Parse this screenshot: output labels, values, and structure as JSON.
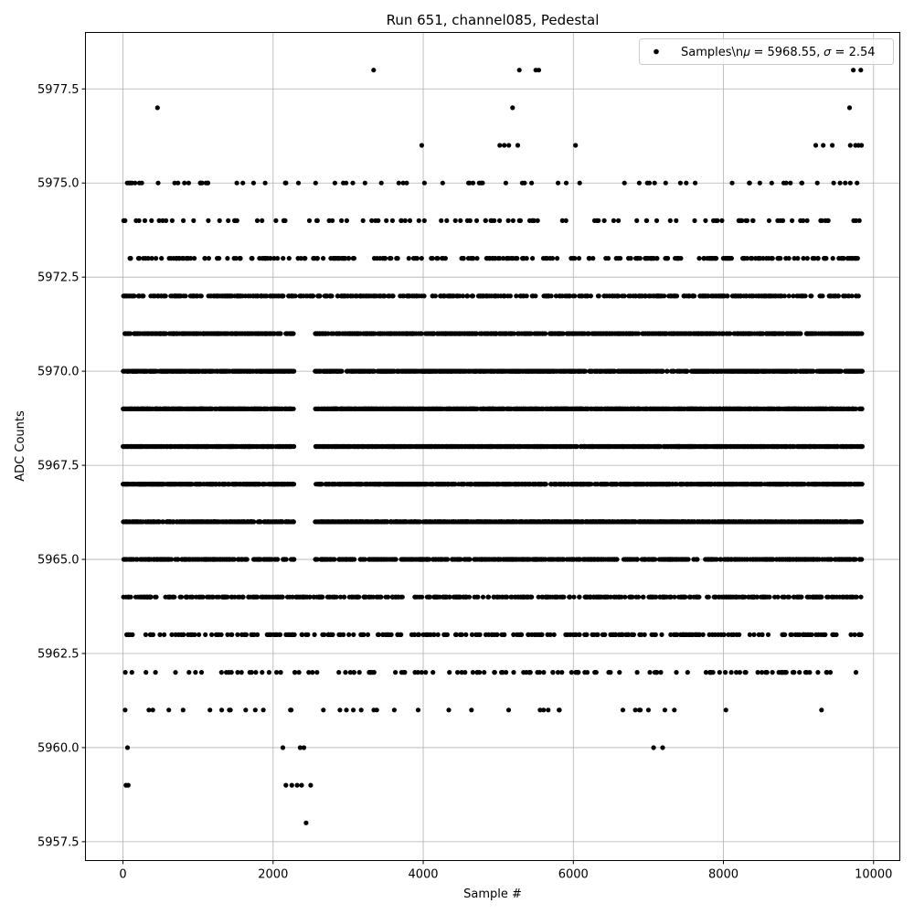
{
  "chart_data": {
    "type": "scatter",
    "title": "Run 651, channel085, Pedestal",
    "xlabel": "Sample #",
    "ylabel": "ADC Counts",
    "xlim": [
      -500,
      10350
    ],
    "ylim": [
      5957.0,
      5979.0
    ],
    "xticks": [
      0,
      2000,
      4000,
      6000,
      8000,
      10000
    ],
    "xtick_labels": [
      "0",
      "2000",
      "4000",
      "6000",
      "8000",
      "10000"
    ],
    "yticks": [
      5957.5,
      5960.0,
      5962.5,
      5965.0,
      5967.5,
      5970.0,
      5972.5,
      5975.0,
      5977.5
    ],
    "ytick_labels": [
      "5957.5",
      "5960.0",
      "5962.5",
      "5965.0",
      "5967.5",
      "5970.0",
      "5972.5",
      "5975.0",
      "5977.5"
    ],
    "grid": true,
    "legend_position": "top-right",
    "marker_color": "#000000",
    "series": [
      {
        "name": "Samples\\n𝜇 = 5968.55, 𝜎 = 2.54",
        "x_range": [
          0,
          9850
        ],
        "n_points": 9850,
        "seed": 651,
        "level_weights": [
          [
            5958,
            0.0001
          ],
          [
            5959,
            0.001
          ],
          [
            5960,
            0.001
          ],
          [
            5961,
            0.004
          ],
          [
            5962,
            0.012
          ],
          [
            5963,
            0.028
          ],
          [
            5964,
            0.05
          ],
          [
            5965,
            0.082
          ],
          [
            5966,
            0.12
          ],
          [
            5967,
            0.135
          ],
          [
            5968,
            0.14
          ],
          [
            5969,
            0.13
          ],
          [
            5970,
            0.12
          ],
          [
            5971,
            0.095
          ],
          [
            5972,
            0.05
          ],
          [
            5973,
            0.024
          ],
          [
            5974,
            0.014
          ],
          [
            5975,
            0.009
          ],
          [
            5976,
            0.003
          ],
          [
            5977,
            0.001
          ],
          [
            5978,
            0.0012
          ]
        ],
        "gap_x_range": [
          2280,
          2560
        ],
        "gap_levels": [
          5965,
          5966,
          5967,
          5968,
          5969,
          5970,
          5971
        ],
        "explicit_points": [
          [
            2440,
            5958
          ],
          [
            60,
            5960
          ],
          [
            2130,
            5960
          ],
          [
            2360,
            5960
          ],
          [
            2410,
            5960
          ],
          [
            7070,
            5960
          ],
          [
            7190,
            5960
          ],
          [
            40,
            5959
          ],
          [
            70,
            5959
          ],
          [
            2170,
            5959
          ],
          [
            2250,
            5959
          ],
          [
            2320,
            5959
          ],
          [
            2380,
            5959
          ],
          [
            2500,
            5959
          ],
          [
            460,
            5977
          ],
          [
            5190,
            5977
          ],
          [
            9680,
            5977
          ],
          [
            3340,
            5978
          ],
          [
            5280,
            5978
          ],
          [
            5500,
            5978
          ],
          [
            5540,
            5978
          ],
          [
            9730,
            5978
          ],
          [
            9830,
            5978
          ],
          [
            3980,
            5976
          ],
          [
            5020,
            5976
          ],
          [
            5080,
            5976
          ],
          [
            5140,
            5976
          ],
          [
            5260,
            5976
          ],
          [
            6030,
            5976
          ],
          [
            9230,
            5976
          ],
          [
            9330,
            5976
          ],
          [
            9450,
            5976
          ],
          [
            9690,
            5976
          ],
          [
            9760,
            5976
          ],
          [
            9800,
            5976
          ],
          [
            9840,
            5976
          ]
        ]
      }
    ]
  }
}
